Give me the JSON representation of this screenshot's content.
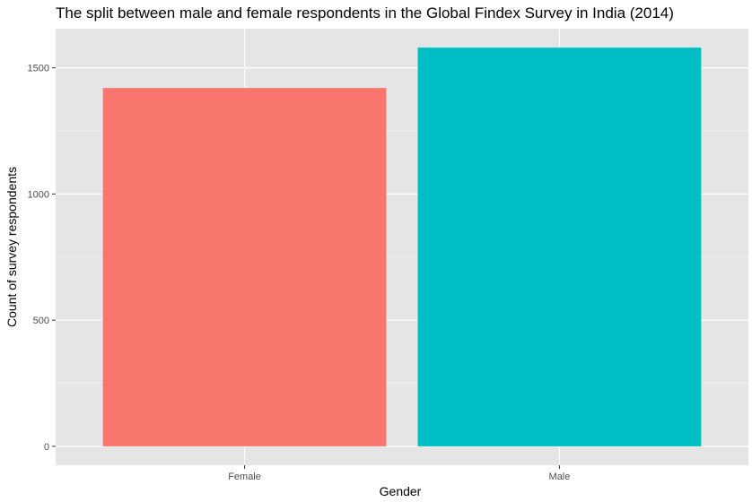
{
  "chart_data": {
    "type": "bar",
    "title": "The split between male and female respondents in the Global Findex Survey in India (2014)",
    "xlabel": "Gender",
    "ylabel": "Count of survey respondents",
    "categories": [
      "Female",
      "Male"
    ],
    "values": [
      1420,
      1580
    ],
    "colors": [
      "#F8766D",
      "#00BFC4"
    ],
    "ylim": [
      -75,
      1655
    ],
    "yticks": [
      0,
      500,
      1000,
      1500
    ],
    "grid": true,
    "legend": "none",
    "panel_background": "#E5E5E5",
    "grid_color": "#FFFFFF"
  }
}
